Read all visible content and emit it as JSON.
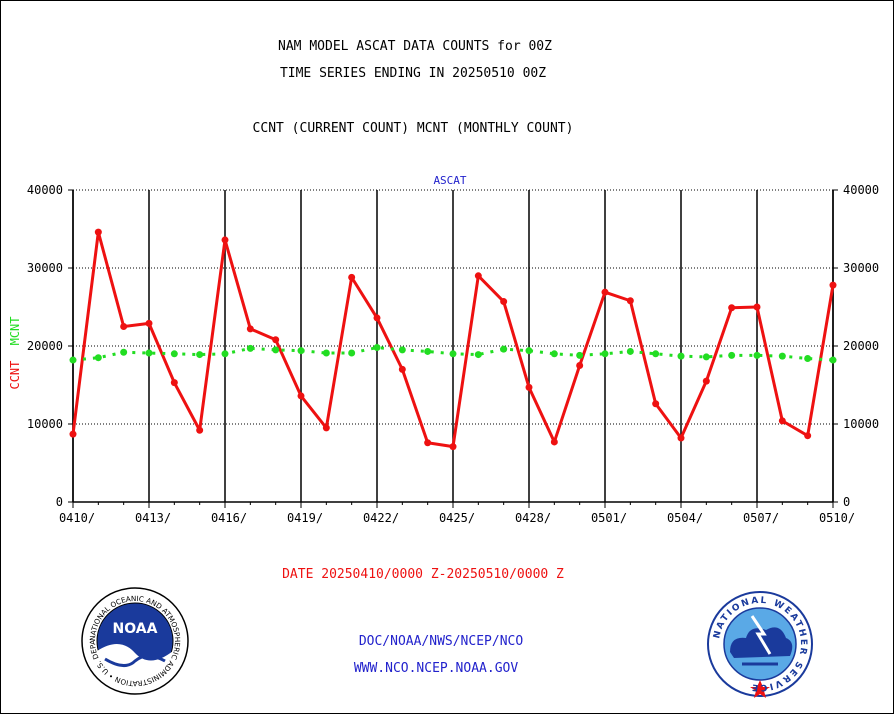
{
  "header": {
    "title_line1": "NAM MODEL ASCAT DATA COUNTS for 00Z",
    "title_line2": "TIME SERIES ENDING IN 20250510 00Z",
    "subtitle": "CCNT (CURRENT COUNT) MCNT (MONTHLY COUNT)"
  },
  "footer": {
    "date_range": "DATE 20250410/0000 Z-20250510/0000 Z",
    "credit_line1": "DOC/NOAA/NWS/NCEP/NCO",
    "credit_line2": "WWW.NCO.NCEP.NOAA.GOV",
    "noaa_logo_text": "NOAA",
    "noaa_ring_text": "NATIONAL OCEANIC AND ATMOSPHERIC ADMINISTRATION • U.S. DEPARTMENT OF COMMERCE •",
    "nws_ring_text": "NATIONAL WEATHER SERVICE"
  },
  "colors": {
    "ccnt": "#ee1111",
    "mcnt": "#22dd22",
    "panel_label": "#2222cc",
    "footer_blue": "#2222cc",
    "footer_red": "#ee1111"
  },
  "chart_data": {
    "type": "line",
    "panel_label": "ASCAT",
    "ylabel_series": [
      "CCNT",
      "MCNT"
    ],
    "ylim": [
      0,
      40000
    ],
    "yticks": [
      0,
      10000,
      20000,
      30000,
      40000
    ],
    "ytick_labels": [
      "0",
      "10000",
      "20000",
      "30000",
      "40000"
    ],
    "xtick_labels": [
      "0410/",
      "0413/",
      "0416/",
      "0419/",
      "0422/",
      "0425/",
      "0428/",
      "0501/",
      "0504/",
      "0507/",
      "0510/"
    ],
    "xtick_positions": [
      0,
      3,
      6,
      9,
      12,
      15,
      18,
      21,
      24,
      27,
      30
    ],
    "grid": "horizontal dotted at 10000 intervals, vertical solid at each labeled tick",
    "x": [
      "0410",
      "0411",
      "0412",
      "0413",
      "0414",
      "0415",
      "0416",
      "0417",
      "0418",
      "0419",
      "0420",
      "0421",
      "0422",
      "0423",
      "0424",
      "0425",
      "0426",
      "0427",
      "0428",
      "0429",
      "0430",
      "0501",
      "0502",
      "0503",
      "0504",
      "0505",
      "0506",
      "0507",
      "0508",
      "0509",
      "0510"
    ],
    "series": [
      {
        "name": "CCNT",
        "style": "solid",
        "values": [
          8700,
          34600,
          22500,
          22900,
          15300,
          9200,
          33600,
          22200,
          20800,
          13600,
          9500,
          28800,
          23600,
          17000,
          7600,
          7100,
          29000,
          25700,
          14700,
          7700,
          17500,
          26900,
          25800,
          12600,
          8200,
          15500,
          24900,
          25000,
          10400,
          8500,
          27800
        ]
      },
      {
        "name": "MCNT",
        "style": "dotted",
        "values": [
          18200,
          18500,
          19200,
          19100,
          19000,
          18900,
          19000,
          19700,
          19500,
          19400,
          19100,
          19100,
          19800,
          19500,
          19300,
          19000,
          18900,
          19600,
          19400,
          19000,
          18800,
          19000,
          19300,
          19000,
          18700,
          18600,
          18800,
          18800,
          18700,
          18400,
          18200
        ]
      }
    ]
  }
}
